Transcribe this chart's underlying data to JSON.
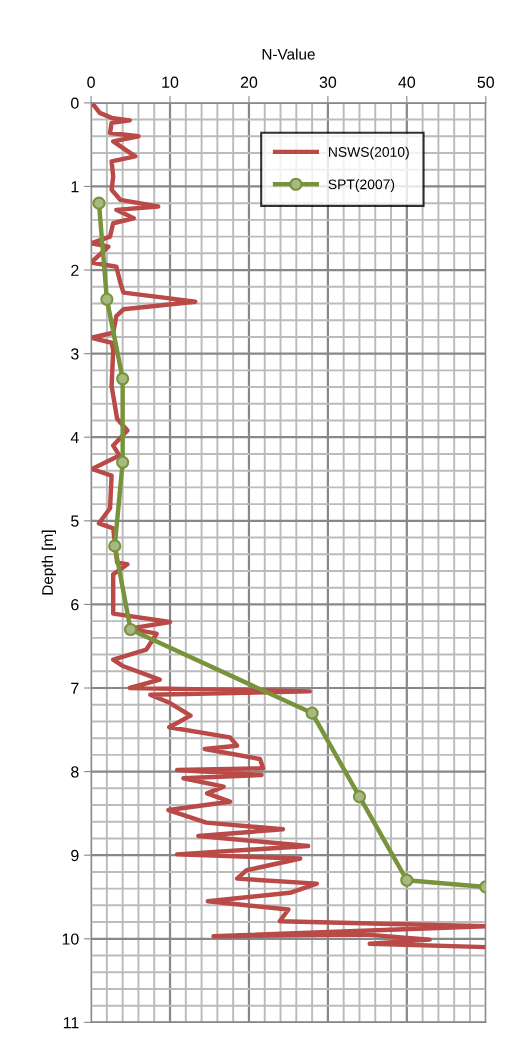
{
  "chart_data": {
    "type": "line",
    "xlabel": "N-Value",
    "ylabel": "Depth [m]",
    "xlim": [
      0,
      50
    ],
    "xticks": [
      0,
      10,
      20,
      30,
      40,
      50
    ],
    "ylim": [
      11,
      0
    ],
    "yticks": [
      0,
      1,
      2,
      3,
      4,
      5,
      6,
      7,
      8,
      9,
      10,
      11
    ],
    "grid": true,
    "legend": "top right",
    "series": [
      {
        "name": "NSWS(2010)",
        "color": "#b94a48",
        "marker": "none",
        "x": [
          0.2,
          1.1,
          2.6,
          4.9,
          2.6,
          2.4,
          6.0,
          2.8,
          5.6,
          2.6,
          2.8,
          2.6,
          3.7,
          8.5,
          3.2,
          5.4,
          2.8,
          2.4,
          0,
          2.2,
          0,
          3.2,
          3.7,
          4.1,
          9.2,
          13.2,
          4.1,
          3.2,
          2.8,
          0,
          2.6,
          2.8,
          2.6,
          3.3,
          4.6,
          2.8,
          3.6,
          0.1,
          2.6,
          2.4,
          1.0,
          2.8,
          3.3,
          4.6,
          2.8,
          2.8,
          10.0,
          4.9,
          8.3,
          7.0,
          2.8,
          4.1,
          8.7,
          4.9,
          27.7,
          7.5,
          10.0,
          12.6,
          9.9,
          17.6,
          18.5,
          14.4,
          21.4,
          21.8,
          10.9,
          21.6,
          11.7,
          16.8,
          14.7,
          17.6,
          9.8,
          14.6,
          24.3,
          13.6,
          27.5,
          10.9,
          26.5,
          19.7,
          18.5,
          28.6,
          25.2,
          14.8,
          25.0,
          23.9,
          50,
          15.5,
          34.9,
          42.9,
          35.3,
          50
        ],
        "values": [
          0.01,
          0.12,
          0.18,
          0.21,
          0.24,
          0.36,
          0.4,
          0.46,
          0.64,
          0.7,
          0.88,
          1.04,
          1.16,
          1.24,
          1.28,
          1.38,
          1.44,
          1.6,
          1.68,
          1.72,
          1.91,
          1.96,
          2.15,
          2.27,
          2.33,
          2.38,
          2.47,
          2.55,
          2.75,
          2.81,
          2.87,
          2.96,
          3.39,
          3.78,
          3.92,
          4.1,
          4.22,
          4.38,
          4.46,
          4.85,
          5.03,
          5.09,
          5.5,
          5.52,
          5.64,
          6.11,
          6.21,
          6.29,
          6.35,
          6.54,
          6.66,
          6.74,
          6.9,
          7.0,
          7.04,
          7.08,
          7.18,
          7.33,
          7.47,
          7.59,
          7.69,
          7.73,
          7.85,
          7.96,
          7.98,
          8.04,
          8.08,
          8.18,
          8.26,
          8.36,
          8.46,
          8.61,
          8.69,
          8.77,
          8.89,
          8.99,
          9.04,
          9.18,
          9.28,
          9.34,
          9.45,
          9.55,
          9.65,
          9.79,
          9.85,
          9.97,
          9.95,
          10.01,
          10.06,
          10.1
        ]
      },
      {
        "name": "SPT(2007)",
        "color": "#77933c",
        "marker": "circle",
        "x": [
          1,
          2,
          4,
          4,
          3,
          5,
          28,
          34,
          40,
          50
        ],
        "values": [
          1.2,
          2.35,
          3.3,
          4.3,
          5.3,
          6.3,
          7.3,
          8.3,
          9.3,
          9.38
        ]
      }
    ]
  }
}
